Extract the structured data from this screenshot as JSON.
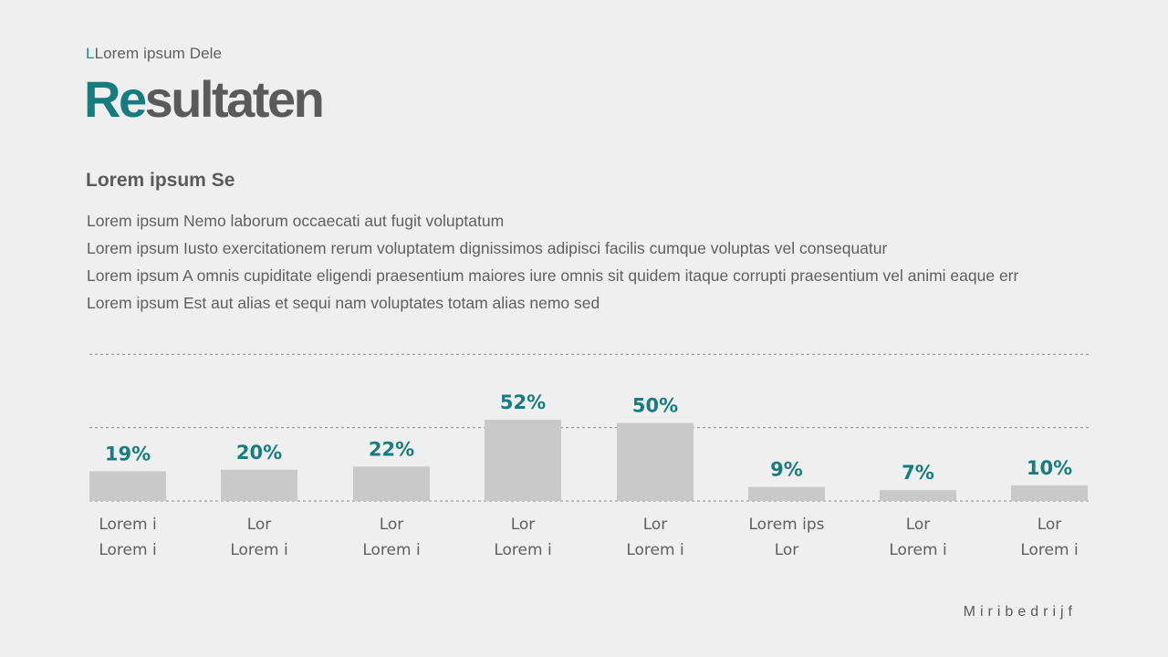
{
  "header": {
    "eyebrow_accent": "L",
    "eyebrow_text": "Lorem ipsum Dele",
    "title_accent": "Re",
    "title_rest": "sultaten"
  },
  "section": {
    "subtitle": "Lorem ipsum Se",
    "lines": [
      "Lorem ipsum Nemo laborum occaecati aut fugit voluptatum",
      "Lorem ipsum Iusto exercitationem rerum voluptatem dignissimos adipisci facilis cumque voluptas vel consequatur",
      "Lorem ipsum A omnis cupiditate eligendi praesentium maiores iure omnis sit quidem itaque corrupti praesentium vel animi eaque err",
      "Lorem ipsum Est aut alias et sequi nam voluptates totam alias nemo sed"
    ]
  },
  "chart_data": {
    "type": "bar",
    "title": "",
    "xlabel": "",
    "ylabel": "",
    "ylim": [
      0,
      100
    ],
    "grid": true,
    "categories": [
      [
        "Lorem i",
        "Lorem i"
      ],
      [
        "Lor",
        "Lorem i"
      ],
      [
        "Lor",
        "Lorem i"
      ],
      [
        "Lor",
        "Lorem i"
      ],
      [
        "Lor",
        "Lorem i"
      ],
      [
        "Lorem ips",
        "Lor"
      ],
      [
        "Lor",
        "Lorem i"
      ],
      [
        "Lor",
        "Lorem i"
      ]
    ],
    "values": [
      19,
      20,
      22,
      52,
      50,
      9,
      7,
      10
    ],
    "value_labels": [
      "19%",
      "20%",
      "22%",
      "52%",
      "50%",
      "9%",
      "7%",
      "10%"
    ],
    "bar_color": "#c9c9c9",
    "label_color": "#177c80"
  },
  "footer": {
    "brand": "Miribedrijf"
  }
}
